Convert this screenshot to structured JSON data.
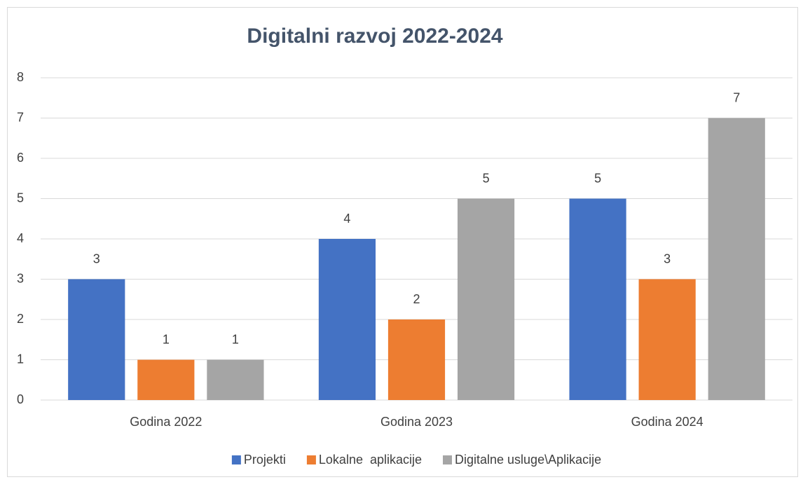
{
  "chart_data": {
    "type": "bar",
    "title": "Digitalni razvoj 2022-2024",
    "categories": [
      "Godina 2022",
      "Godina 2023",
      "Godina 2024"
    ],
    "series": [
      {
        "name": "Projekti",
        "color": "#4472c4",
        "values": [
          3,
          4,
          5
        ]
      },
      {
        "name": "Lokalne  aplikacije",
        "color": "#ed7d31",
        "values": [
          1,
          2,
          3
        ]
      },
      {
        "name": "Digitalne usluge\\Aplikacije",
        "color": "#a5a5a5",
        "values": [
          1,
          5,
          7
        ]
      }
    ],
    "ylim": [
      0,
      8
    ],
    "yticks": [
      0,
      1,
      2,
      3,
      4,
      5,
      6,
      7,
      8
    ],
    "grid": true,
    "legend": "bottom"
  }
}
